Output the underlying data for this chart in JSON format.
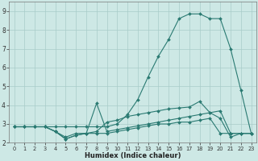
{
  "title": "",
  "xlabel": "Humidex (Indice chaleur)",
  "ylabel": "",
  "background_color": "#cde8e5",
  "grid_color": "#a8ccc9",
  "line_color": "#2a7a72",
  "xlim": [
    -0.5,
    23.5
  ],
  "ylim": [
    2.0,
    9.5
  ],
  "xticks": [
    0,
    1,
    2,
    3,
    4,
    5,
    6,
    7,
    8,
    9,
    10,
    11,
    12,
    13,
    14,
    15,
    16,
    17,
    18,
    19,
    20,
    21,
    22,
    23
  ],
  "yticks": [
    2,
    3,
    4,
    5,
    6,
    7,
    8,
    9
  ],
  "lines": [
    {
      "x": [
        0,
        1,
        2,
        3,
        4,
        5,
        6,
        7,
        8,
        9,
        10,
        11,
        12,
        13,
        14,
        15,
        16,
        17,
        18,
        19,
        20,
        21,
        22,
        23
      ],
      "y": [
        2.85,
        2.85,
        2.85,
        2.85,
        2.85,
        2.85,
        2.85,
        2.85,
        2.85,
        2.85,
        3.0,
        3.5,
        4.3,
        5.5,
        6.6,
        7.5,
        8.6,
        8.85,
        8.85,
        8.6,
        8.6,
        7.0,
        4.8,
        2.5
      ]
    },
    {
      "x": [
        0,
        1,
        2,
        3,
        4,
        5,
        6,
        7,
        8,
        9,
        10,
        11,
        12,
        13,
        14,
        15,
        16,
        17,
        18,
        19,
        20,
        21,
        22,
        23
      ],
      "y": [
        2.85,
        2.85,
        2.85,
        2.85,
        2.6,
        2.3,
        2.5,
        2.5,
        4.1,
        2.6,
        2.7,
        2.8,
        2.9,
        3.0,
        3.1,
        3.2,
        3.3,
        3.4,
        3.5,
        3.6,
        3.7,
        2.5,
        2.5,
        2.5
      ]
    },
    {
      "x": [
        0,
        1,
        2,
        3,
        4,
        5,
        6,
        7,
        8,
        9,
        10,
        11,
        12,
        13,
        14,
        15,
        16,
        17,
        18,
        19,
        20,
        21,
        22,
        23
      ],
      "y": [
        2.85,
        2.85,
        2.85,
        2.85,
        2.6,
        2.2,
        2.4,
        2.5,
        2.5,
        2.5,
        2.6,
        2.7,
        2.8,
        2.9,
        3.0,
        3.0,
        3.1,
        3.1,
        3.2,
        3.3,
        2.5,
        2.5,
        2.5,
        2.5
      ]
    },
    {
      "x": [
        0,
        1,
        2,
        3,
        4,
        5,
        6,
        7,
        8,
        9,
        10,
        11,
        12,
        13,
        14,
        15,
        16,
        17,
        18,
        19,
        20,
        21,
        22,
        23
      ],
      "y": [
        2.85,
        2.85,
        2.85,
        2.85,
        2.6,
        2.2,
        2.4,
        2.5,
        2.6,
        3.1,
        3.2,
        3.4,
        3.5,
        3.6,
        3.7,
        3.8,
        3.85,
        3.9,
        4.2,
        3.6,
        3.3,
        2.3,
        2.5,
        2.5
      ]
    }
  ]
}
